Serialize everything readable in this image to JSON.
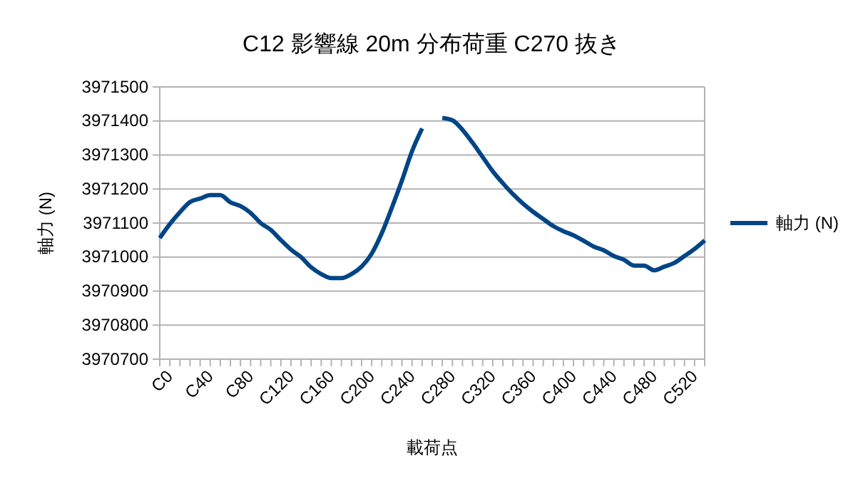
{
  "chart_data": {
    "type": "line",
    "title": "C12  影響線  20m 分布荷重  C270 抜き",
    "xlabel": "載荷点",
    "ylabel": "軸力 (N)",
    "categories": [
      "C0",
      null,
      null,
      null,
      "C40",
      null,
      null,
      null,
      "C80",
      null,
      null,
      null,
      "C120",
      null,
      null,
      null,
      "C160",
      null,
      null,
      null,
      "C200",
      null,
      null,
      null,
      "C240",
      null,
      null,
      null,
      "C280",
      null,
      null,
      null,
      "C320",
      null,
      null,
      null,
      "C360",
      null,
      null,
      null,
      "C400",
      null,
      null,
      null,
      "C440",
      null,
      null,
      null,
      "C480",
      null,
      null,
      null,
      "C520",
      null,
      null
    ],
    "series": [
      {
        "name": "軸力 (N)",
        "color": "#004586",
        "values": [
          3971056,
          3971097,
          3971132,
          3971162,
          3971172,
          3971182,
          3971182,
          3971161,
          3971150,
          3971130,
          3971100,
          3971080,
          3971050,
          3971022,
          3971000,
          3970970,
          3970950,
          3970938,
          3970938,
          3970950,
          3970972,
          3971010,
          3971070,
          3971145,
          3971225,
          3971311,
          3971378,
          null,
          3971409,
          3971402,
          3971374,
          3971336,
          3971294,
          3971252,
          3971217,
          3971185,
          3971157,
          3971133,
          3971112,
          3971091,
          3971076,
          3971064,
          3971048,
          3971031,
          3971020,
          3971003,
          3970992,
          3970975,
          3970975,
          3970961,
          3970972,
          3970983,
          3971003,
          3971024,
          3971049
        ]
      }
    ],
    "ylim": [
      3970700,
      3971500
    ],
    "yticks": [
      3970700,
      3970800,
      3970900,
      3971000,
      3971100,
      3971200,
      3971300,
      3971400,
      3971500
    ],
    "grid": "y",
    "legend": "right",
    "line_style": "solid",
    "marker": "none"
  }
}
